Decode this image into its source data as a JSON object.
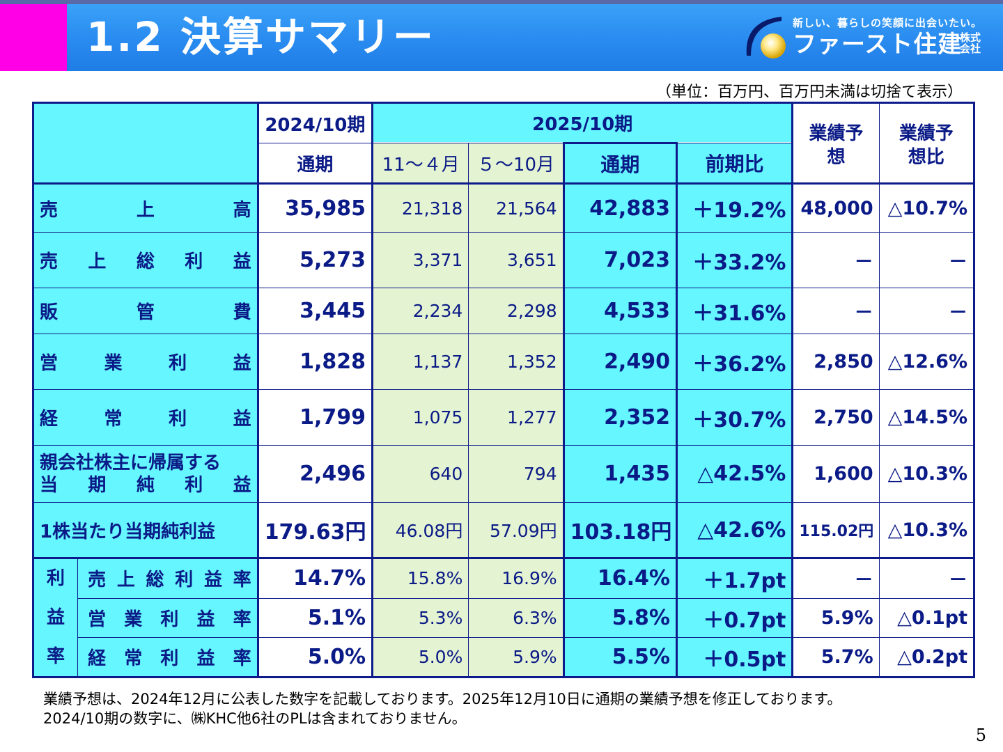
{
  "header": {
    "title": "1.2 決算サマリー",
    "logo_tagline": "新しい、暮らしの笑顔に出会いたい。",
    "logo_name": "ファースト住建",
    "logo_suffix_top": "株式",
    "logo_suffix_bottom": "会社"
  },
  "unit_note": "（単位：百万円、百万円未満は切捨て表示）",
  "table": {
    "col_headers": {
      "fy2024": "2024/10期",
      "fy2025": "2025/10期",
      "full_year": "通期",
      "h1": "11～４月",
      "h2": "５～10月",
      "full_year_2025": "通期",
      "yoy": "前期比",
      "forecast": "業績予想",
      "forecast_ratio": "業績予想比"
    },
    "rows": [
      {
        "label_parts": [
          "売",
          "上",
          "高"
        ],
        "fy2024": "35,985",
        "h1": "21,318",
        "h2": "21,564",
        "fy2025": "42,883",
        "yoy": "＋19.2%",
        "forecast": "48,000",
        "forecast_ratio": "△10.7%"
      },
      {
        "label_parts": [
          "売",
          "上",
          "総",
          "利",
          "益"
        ],
        "fy2024": "5,273",
        "h1": "3,371",
        "h2": "3,651",
        "fy2025": "7,023",
        "yoy": "＋33.2%",
        "forecast": "－",
        "forecast_ratio": "－"
      },
      {
        "label_parts": [
          "販",
          "管",
          "費"
        ],
        "fy2024": "3,445",
        "h1": "2,234",
        "h2": "2,298",
        "fy2025": "4,533",
        "yoy": "＋31.6%",
        "forecast": "－",
        "forecast_ratio": "－"
      },
      {
        "label_parts": [
          "営",
          "業",
          "利",
          "益"
        ],
        "fy2024": "1,828",
        "h1": "1,137",
        "h2": "1,352",
        "fy2025": "2,490",
        "yoy": "＋36.2%",
        "forecast": "2,850",
        "forecast_ratio": "△12.6%"
      },
      {
        "label_parts": [
          "経",
          "常",
          "利",
          "益"
        ],
        "fy2024": "1,799",
        "h1": "1,075",
        "h2": "1,277",
        "fy2025": "2,352",
        "yoy": "＋30.7%",
        "forecast": "2,750",
        "forecast_ratio": "△14.5%"
      },
      {
        "label_line1": "親会社株主に帰属する",
        "label_parts": [
          "当",
          "期",
          "純",
          "利",
          "益"
        ],
        "fy2024": "2,496",
        "h1": "640",
        "h2": "794",
        "fy2025": "1,435",
        "yoy": "△42.5%",
        "forecast": "1,600",
        "forecast_ratio": "△10.3%"
      },
      {
        "label": "1株当たり当期純利益",
        "fy2024": "179.63円",
        "h1": "46.08円",
        "h2": "57.09円",
        "fy2025": "103.18円",
        "yoy": "△42.6%",
        "forecast": "115.02円",
        "forecast_ratio": "△10.3%"
      }
    ],
    "margin_group": [
      "利",
      "益",
      "率"
    ],
    "margin_rows": [
      {
        "label_parts": [
          "売",
          "上",
          "総",
          "利",
          "益",
          "率"
        ],
        "fy2024": "14.7%",
        "h1": "15.8%",
        "h2": "16.9%",
        "fy2025": "16.4%",
        "yoy": "＋1.7pt",
        "forecast": "－",
        "forecast_ratio": "－"
      },
      {
        "label_parts": [
          "営",
          "業",
          "利",
          "益",
          "率"
        ],
        "fy2024": "5.1%",
        "h1": "5.3%",
        "h2": "6.3%",
        "fy2025": "5.8%",
        "yoy": "＋0.7pt",
        "forecast": "5.9%",
        "forecast_ratio": "△0.1pt"
      },
      {
        "label_parts": [
          "経",
          "常",
          "利",
          "益",
          "率"
        ],
        "fy2024": "5.0%",
        "h1": "5.0%",
        "h2": "5.9%",
        "fy2025": "5.5%",
        "yoy": "＋0.5pt",
        "forecast": "5.7%",
        "forecast_ratio": "△0.2pt"
      }
    ]
  },
  "footnote": {
    "line1": "業績予想は、2024年12月に公表した数字を記載しております。2025年12月10日に通期の業績予想を修正しております。",
    "line2": "2024/10期の数字に、㈱KHC他6社のPLは含まれておりません。"
  },
  "page_number": "5",
  "colors": {
    "banner": "#2a8cf0",
    "accent_pink": "#ff00e6",
    "cell_cyan": "#66f6ff",
    "cell_green": "#e4f3d2",
    "text_navy": "#0a1a86"
  }
}
